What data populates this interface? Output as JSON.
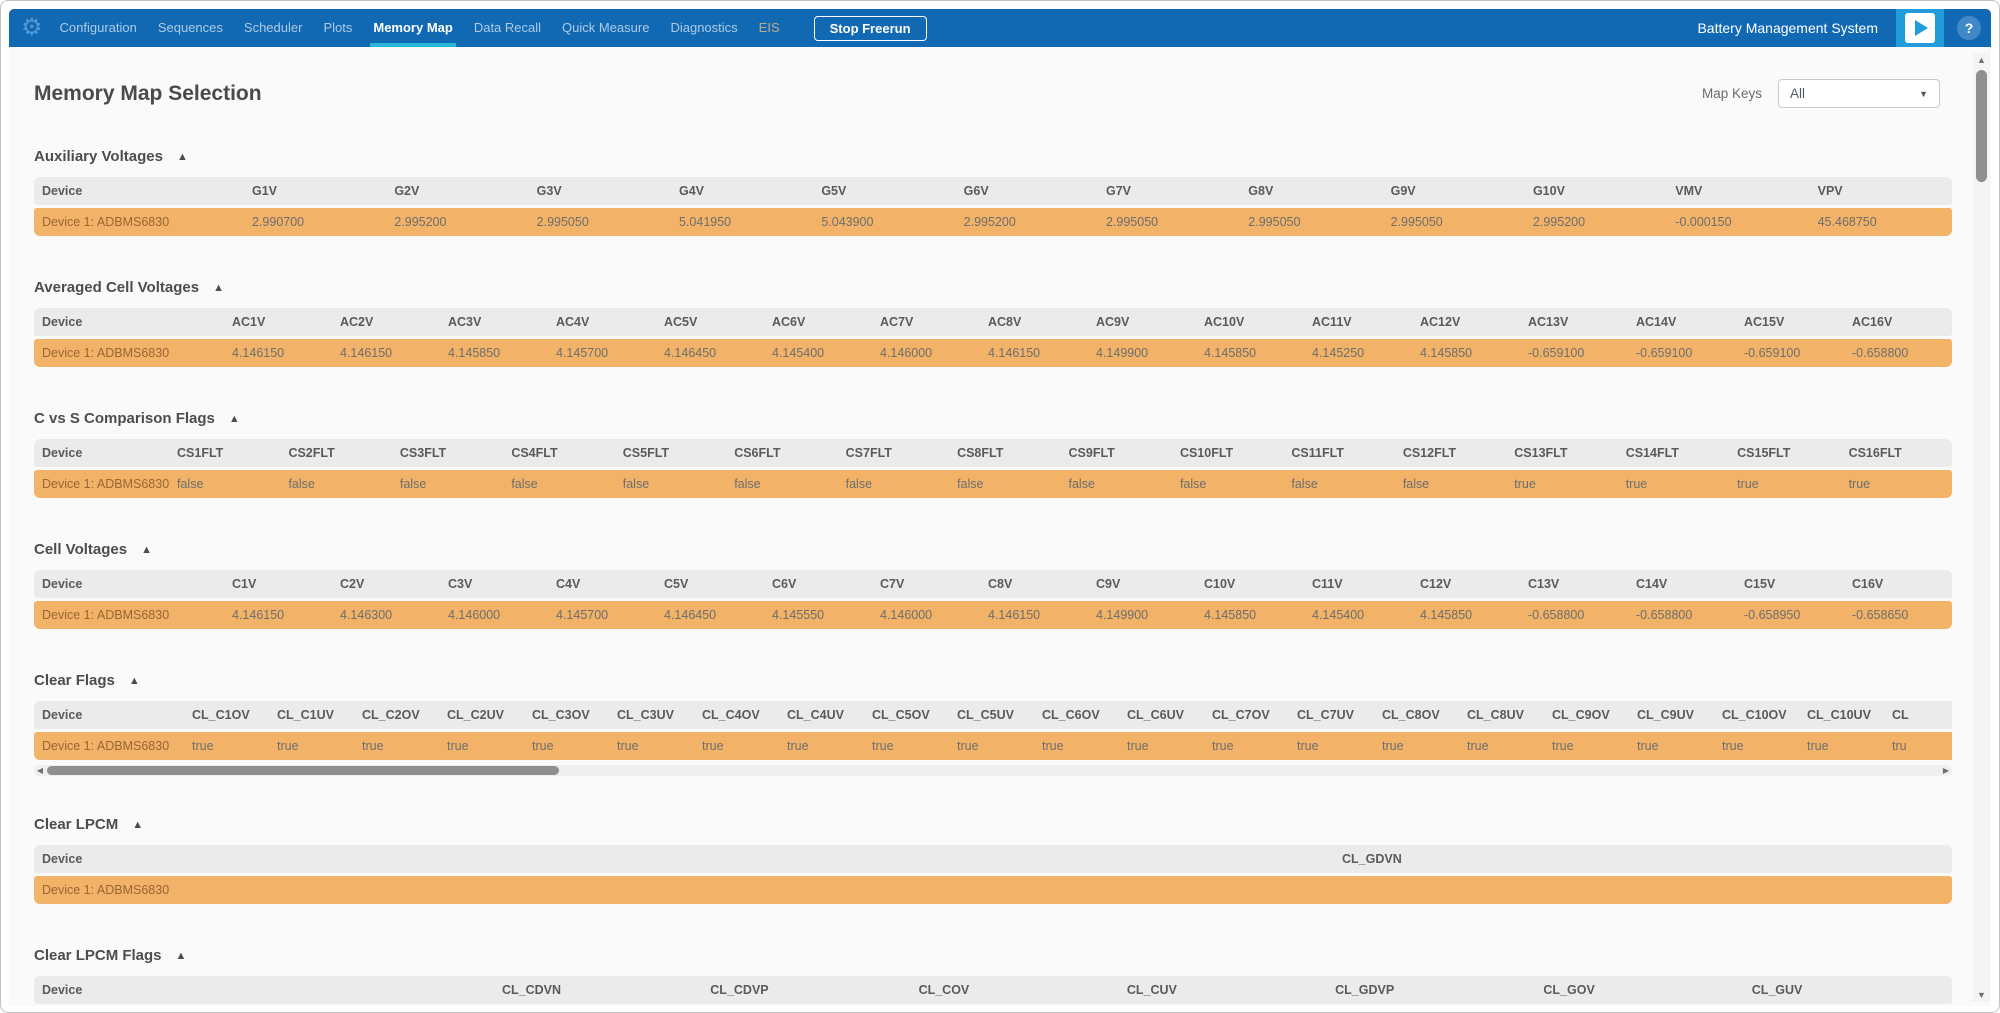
{
  "icons": {
    "gear": "⚙",
    "collapse": "▲",
    "dropdown_caret": "▼",
    "scroll_up": "▲",
    "scroll_down": "▼",
    "scroll_left": "◀",
    "scroll_right": "▶",
    "help": "?"
  },
  "colors": {
    "nav_blue": "#1169b4",
    "active_underline": "#29b7d8",
    "play_tile_blue": "#1f9cd9",
    "row_highlight_orange": "#f2b267",
    "table_header_gray": "#ebebeb"
  },
  "nav": {
    "items": [
      {
        "label": "Configuration"
      },
      {
        "label": "Sequences"
      },
      {
        "label": "Scheduler"
      },
      {
        "label": "Plots"
      },
      {
        "label": "Memory Map",
        "active": true
      },
      {
        "label": "Data Recall"
      },
      {
        "label": "Quick Measure"
      },
      {
        "label": "Diagnostics"
      },
      {
        "label": "EIS",
        "muted": true
      }
    ],
    "stop_button_label": "Stop Freerun",
    "brand": "Battery Management System"
  },
  "header": {
    "title": "Memory Map Selection",
    "map_keys_label": "Map Keys",
    "map_keys_value": "All"
  },
  "sections": [
    {
      "title": "Auxiliary Voltages",
      "columns": [
        "Device",
        "G1V",
        "G2V",
        "G3V",
        "G4V",
        "G5V",
        "G6V",
        "G7V",
        "G8V",
        "G9V",
        "G10V",
        "VMV",
        "VPV"
      ],
      "rows": [
        [
          "Device 1: ADBMS6830",
          "2.990700",
          "2.995200",
          "2.995050",
          "5.041950",
          "5.043900",
          "2.995200",
          "2.995050",
          "2.995050",
          "2.995050",
          "2.995200",
          "-0.000150",
          "45.468750"
        ]
      ]
    },
    {
      "title": "Averaged Cell Voltages",
      "columns": [
        "Device",
        "AC1V",
        "AC2V",
        "AC3V",
        "AC4V",
        "AC5V",
        "AC6V",
        "AC7V",
        "AC8V",
        "AC9V",
        "AC10V",
        "AC11V",
        "AC12V",
        "AC13V",
        "AC14V",
        "AC15V",
        "AC16V"
      ],
      "rows": [
        [
          "Device 1: ADBMS6830",
          "4.146150",
          "4.146150",
          "4.145850",
          "4.145700",
          "4.146450",
          "4.145400",
          "4.146000",
          "4.146150",
          "4.149900",
          "4.145850",
          "4.145250",
          "4.145850",
          "-0.659100",
          "-0.659100",
          "-0.659100",
          "-0.658800"
        ]
      ]
    },
    {
      "title": "C vs S Comparison Flags",
      "columns": [
        "Device",
        "CS1FLT",
        "CS2FLT",
        "CS3FLT",
        "CS4FLT",
        "CS5FLT",
        "CS6FLT",
        "CS7FLT",
        "CS8FLT",
        "CS9FLT",
        "CS10FLT",
        "CS11FLT",
        "CS12FLT",
        "CS13FLT",
        "CS14FLT",
        "CS15FLT",
        "CS16FLT"
      ],
      "rows": [
        [
          "Device 1: ADBMS6830",
          "false",
          "false",
          "false",
          "false",
          "false",
          "false",
          "false",
          "false",
          "false",
          "false",
          "false",
          "false",
          "true",
          "true",
          "true",
          "true"
        ]
      ]
    },
    {
      "title": "Cell Voltages",
      "columns": [
        "Device",
        "C1V",
        "C2V",
        "C3V",
        "C4V",
        "C5V",
        "C6V",
        "C7V",
        "C8V",
        "C9V",
        "C10V",
        "C11V",
        "C12V",
        "C13V",
        "C14V",
        "C15V",
        "C16V"
      ],
      "rows": [
        [
          "Device 1: ADBMS6830",
          "4.146150",
          "4.146300",
          "4.146000",
          "4.145700",
          "4.146450",
          "4.145550",
          "4.146000",
          "4.146150",
          "4.149900",
          "4.145850",
          "4.145400",
          "4.145850",
          "-0.658800",
          "-0.658800",
          "-0.658950",
          "-0.658650"
        ]
      ]
    },
    {
      "title": "Clear Flags",
      "columns": [
        "Device",
        "CL_C1OV",
        "CL_C1UV",
        "CL_C2OV",
        "CL_C2UV",
        "CL_C3OV",
        "CL_C3UV",
        "CL_C4OV",
        "CL_C4UV",
        "CL_C5OV",
        "CL_C5UV",
        "CL_C6OV",
        "CL_C6UV",
        "CL_C7OV",
        "CL_C7UV",
        "CL_C8OV",
        "CL_C8UV",
        "CL_C9OV",
        "CL_C9UV",
        "CL_C10OV",
        "CL_C10UV",
        "CL"
      ],
      "rows": [
        [
          "Device 1: ADBMS6830",
          "true",
          "true",
          "true",
          "true",
          "true",
          "true",
          "true",
          "true",
          "true",
          "true",
          "true",
          "true",
          "true",
          "true",
          "true",
          "true",
          "true",
          "true",
          "true",
          "true",
          "tru"
        ]
      ]
    },
    {
      "title": "Clear LPCM",
      "columns": [
        "Device",
        "CL_GDVN"
      ],
      "rows": [
        [
          "Device 1: ADBMS6830",
          ""
        ]
      ]
    },
    {
      "title": "Clear LPCM Flags",
      "columns": [
        "Device",
        "CL_CDVN",
        "CL_CDVP",
        "CL_COV",
        "CL_CUV",
        "CL_GDVP",
        "CL_GOV",
        "CL_GUV"
      ],
      "rows": [
        [
          "",
          "",
          "",
          "",
          "",
          "",
          "",
          ""
        ]
      ]
    }
  ]
}
